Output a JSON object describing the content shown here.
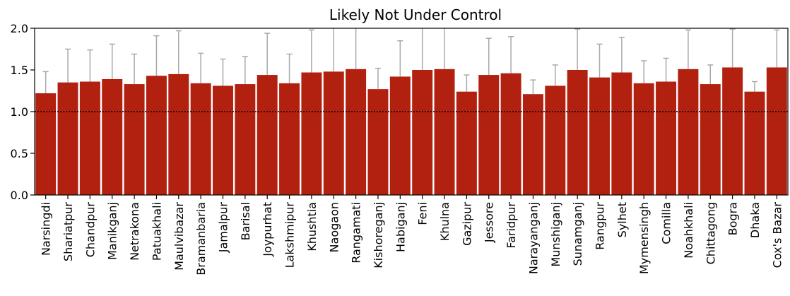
{
  "chart_data": {
    "type": "bar",
    "title": "Likely Not Under Control",
    "xlabel": "",
    "ylabel": "",
    "ylim": [
      0.0,
      2.0
    ],
    "yticks": [
      "0.0",
      "0.5",
      "1.0",
      "1.5",
      "2.0"
    ],
    "reference_line": 1.0,
    "grid": false,
    "colors": {
      "bar": "#b22010",
      "bar_edge": "#ffffff",
      "error_bar": "#a9a9a9",
      "reference_line": "#000000"
    },
    "categories": [
      "Narsingdi",
      "Shariatpur",
      "Chandpur",
      "Manikganj",
      "Netrakona",
      "Patuakhali",
      "Maulvibazar",
      "Bramanbaria",
      "Jamalpur",
      "Barisal",
      "Joypurhat",
      "Lakshmipur",
      "Khushtia",
      "Naogaon",
      "Rangamati",
      "Kishoreganj",
      "Habiganj",
      "Feni",
      "Khulna",
      "Gazipur",
      "Jessore",
      "Faridpur",
      "Narayanganj",
      "Munshiganj",
      "Sunamganj",
      "Rangpur",
      "Sylhet",
      "Mymensingh",
      "Comilla",
      "Noahkhali",
      "Chittagong",
      "Bogra",
      "Dhaka",
      "Cox's Bazar"
    ],
    "values": [
      1.22,
      1.35,
      1.36,
      1.39,
      1.33,
      1.43,
      1.45,
      1.34,
      1.31,
      1.33,
      1.44,
      1.34,
      1.47,
      1.48,
      1.51,
      1.27,
      1.42,
      1.5,
      1.51,
      1.24,
      1.44,
      1.46,
      1.21,
      1.31,
      1.5,
      1.41,
      1.47,
      1.34,
      1.36,
      1.51,
      1.33,
      1.53,
      1.24,
      1.53
    ],
    "error_upper": [
      1.48,
      1.75,
      1.74,
      1.81,
      1.69,
      1.91,
      1.97,
      1.7,
      1.63,
      1.66,
      1.94,
      1.69,
      1.98,
      2.04,
      2.06,
      1.52,
      1.85,
      2.04,
      2.08,
      1.44,
      1.88,
      1.9,
      1.38,
      1.56,
      1.99,
      1.81,
      1.89,
      1.61,
      1.64,
      1.98,
      1.56,
      1.99,
      1.36,
      1.98
    ]
  }
}
